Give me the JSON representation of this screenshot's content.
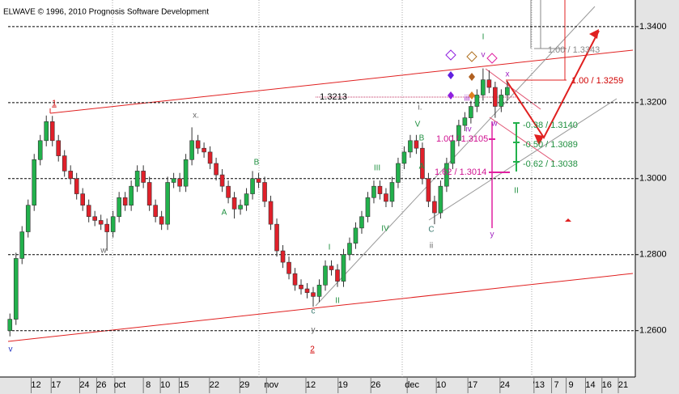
{
  "chart_data": {
    "type": "candlestick",
    "title": "ELWAVE © 1996, 2010 Prognosis Software Development",
    "ylim": [
      1.2478,
      1.347
    ],
    "yticks": [
      {
        "value": 1.26,
        "label": "1.2600"
      },
      {
        "value": 1.28,
        "label": "1.2800"
      },
      {
        "value": 1.3,
        "label": "1.3000"
      },
      {
        "value": 1.32,
        "label": "1.3200"
      },
      {
        "value": 1.34,
        "label": "1.3400"
      }
    ],
    "xlim": [
      -0.3,
      103.1
    ],
    "xticks": [
      {
        "value": 4.3,
        "label": "12"
      },
      {
        "value": 7.6,
        "label": "17"
      },
      {
        "value": 12.3,
        "label": "24"
      },
      {
        "value": 15.1,
        "label": "26"
      },
      {
        "value": 18.1,
        "label": "oct"
      },
      {
        "value": 22.8,
        "label": "8"
      },
      {
        "value": 25.6,
        "label": "10"
      },
      {
        "value": 28.7,
        "label": "15"
      },
      {
        "value": 33.7,
        "label": "22"
      },
      {
        "value": 38.7,
        "label": "29"
      },
      {
        "value": 43.1,
        "label": "nov"
      },
      {
        "value": 49.6,
        "label": "12"
      },
      {
        "value": 54.9,
        "label": "19"
      },
      {
        "value": 60.3,
        "label": "26"
      },
      {
        "value": 66.3,
        "label": "dec"
      },
      {
        "value": 71.1,
        "label": "10"
      },
      {
        "value": 76.3,
        "label": "17"
      },
      {
        "value": 81.6,
        "label": "24"
      },
      {
        "value": 87.2,
        "label": "'13"
      },
      {
        "value": 90.1,
        "label": "7"
      },
      {
        "value": 92.5,
        "label": "9"
      },
      {
        "value": 95.7,
        "label": "14"
      },
      {
        "value": 98.4,
        "label": "16"
      },
      {
        "value": 101.1,
        "label": "21"
      }
    ],
    "up_color": "#22b14c",
    "down_color": "#e0202a",
    "candles": [
      [
        1.26,
        1.2645,
        1.2585,
        1.263
      ],
      [
        1.263,
        1.2805,
        1.2615,
        1.279
      ],
      [
        1.279,
        1.2875,
        1.2775,
        1.286
      ],
      [
        1.286,
        1.2945,
        1.2845,
        1.293
      ],
      [
        1.293,
        1.3065,
        1.2915,
        1.305
      ],
      [
        1.305,
        1.3115,
        1.3035,
        1.31
      ],
      [
        1.31,
        1.3166,
        1.3085,
        1.315
      ],
      [
        1.315,
        1.3165,
        1.3085,
        1.31
      ],
      [
        1.31,
        1.3115,
        1.3045,
        1.306
      ],
      [
        1.306,
        1.3075,
        1.3005,
        1.302
      ],
      [
        1.302,
        1.3035,
        1.2985,
        1.3
      ],
      [
        1.3,
        1.3015,
        1.2945,
        1.296
      ],
      [
        1.296,
        1.2975,
        1.2915,
        1.293
      ],
      [
        1.293,
        1.2945,
        1.2885,
        1.29
      ],
      [
        1.29,
        1.2915,
        1.2875,
        1.289
      ],
      [
        1.289,
        1.2905,
        1.2865,
        1.288
      ],
      [
        1.288,
        1.2895,
        1.281,
        1.286
      ],
      [
        1.286,
        1.2915,
        1.2845,
        1.29
      ],
      [
        1.29,
        1.2965,
        1.2885,
        1.295
      ],
      [
        1.295,
        1.2965,
        1.2915,
        1.293
      ],
      [
        1.293,
        1.2995,
        1.2915,
        1.298
      ],
      [
        1.298,
        1.3035,
        1.2965,
        1.302
      ],
      [
        1.302,
        1.3035,
        1.2975,
        1.299
      ],
      [
        1.299,
        1.3005,
        1.2915,
        1.293
      ],
      [
        1.293,
        1.2945,
        1.2885,
        1.29
      ],
      [
        1.29,
        1.2915,
        1.2865,
        1.288
      ],
      [
        1.288,
        1.3005,
        1.2865,
        1.299
      ],
      [
        1.299,
        1.3015,
        1.2975,
        1.3
      ],
      [
        1.3,
        1.3015,
        1.2965,
        1.298
      ],
      [
        1.298,
        1.3065,
        1.2965,
        1.305
      ],
      [
        1.305,
        1.3135,
        1.3035,
        1.31
      ],
      [
        1.31,
        1.3115,
        1.3065,
        1.308
      ],
      [
        1.308,
        1.3095,
        1.3055,
        1.307
      ],
      [
        1.307,
        1.3085,
        1.3025,
        1.304
      ],
      [
        1.304,
        1.3055,
        1.2995,
        1.301
      ],
      [
        1.301,
        1.3025,
        1.2965,
        1.298
      ],
      [
        1.298,
        1.2995,
        1.2935,
        1.295
      ],
      [
        1.295,
        1.2965,
        1.2895,
        1.292
      ],
      [
        1.292,
        1.2945,
        1.2905,
        1.293
      ],
      [
        1.293,
        1.2975,
        1.2915,
        1.296
      ],
      [
        1.296,
        1.302,
        1.2945,
        1.3
      ],
      [
        1.3,
        1.3015,
        1.2975,
        1.299
      ],
      [
        1.299,
        1.3005,
        1.2925,
        1.294
      ],
      [
        1.294,
        1.2955,
        1.2865,
        1.288
      ],
      [
        1.288,
        1.2895,
        1.2795,
        1.281
      ],
      [
        1.281,
        1.2825,
        1.2765,
        1.278
      ],
      [
        1.278,
        1.2795,
        1.2735,
        1.275
      ],
      [
        1.275,
        1.2765,
        1.2705,
        1.272
      ],
      [
        1.272,
        1.2735,
        1.2695,
        1.271
      ],
      [
        1.271,
        1.2725,
        1.2685,
        1.27
      ],
      [
        1.27,
        1.2715,
        1.2663,
        1.269
      ],
      [
        1.269,
        1.2735,
        1.2675,
        1.272
      ],
      [
        1.272,
        1.2785,
        1.2705,
        1.277
      ],
      [
        1.277,
        1.2785,
        1.2745,
        1.276
      ],
      [
        1.276,
        1.2775,
        1.2715,
        1.273
      ],
      [
        1.273,
        1.2815,
        1.2715,
        1.28
      ],
      [
        1.28,
        1.2845,
        1.2785,
        1.283
      ],
      [
        1.283,
        1.2885,
        1.2815,
        1.287
      ],
      [
        1.287,
        1.2915,
        1.2855,
        1.29
      ],
      [
        1.29,
        1.2965,
        1.2885,
        1.295
      ],
      [
        1.295,
        1.2995,
        1.2935,
        1.298
      ],
      [
        1.298,
        1.2995,
        1.2945,
        1.296
      ],
      [
        1.296,
        1.2975,
        1.2925,
        1.294
      ],
      [
        1.294,
        1.3005,
        1.2925,
        1.299
      ],
      [
        1.299,
        1.3055,
        1.2975,
        1.304
      ],
      [
        1.304,
        1.3085,
        1.3025,
        1.307
      ],
      [
        1.307,
        1.3115,
        1.3055,
        1.31
      ],
      [
        1.31,
        1.3115,
        1.3065,
        1.308
      ],
      [
        1.308,
        1.3095,
        1.2985,
        1.3
      ],
      [
        1.3,
        1.3015,
        1.2925,
        1.294
      ],
      [
        1.294,
        1.2955,
        1.288,
        1.291
      ],
      [
        1.291,
        1.2995,
        1.2895,
        1.298
      ],
      [
        1.298,
        1.3055,
        1.2965,
        1.304
      ],
      [
        1.304,
        1.3115,
        1.3025,
        1.31
      ],
      [
        1.31,
        1.3155,
        1.3085,
        1.314
      ],
      [
        1.314,
        1.3175,
        1.3125,
        1.316
      ],
      [
        1.316,
        1.3205,
        1.3145,
        1.319
      ],
      [
        1.319,
        1.3235,
        1.3175,
        1.322
      ],
      [
        1.322,
        1.329,
        1.3205,
        1.326
      ],
      [
        1.326,
        1.3285,
        1.3225,
        1.324
      ],
      [
        1.324,
        1.3255,
        1.316,
        1.319
      ],
      [
        1.319,
        1.3235,
        1.3175,
        1.322
      ],
      [
        1.322,
        1.3255,
        1.3205,
        1.324
      ]
    ],
    "annotations": [
      "1",
      "2",
      "v",
      "x.",
      "w",
      "B",
      "A",
      "c",
      "y",
      "I",
      "II",
      "III",
      "IV",
      "V",
      "B",
      "A",
      "C",
      "ii",
      "i.",
      "iv",
      "iii",
      "I",
      "II",
      "v",
      "x",
      "w",
      "y",
      "1.3213",
      "1.00 / 1.3343",
      "1.00 / 1.3259",
      "-0.38 / 1.3140",
      "-0.50 / 1.3089",
      "-0.62 / 1.3038",
      "1.00 / 1.3105",
      "1.62 / 1.3014"
    ]
  }
}
